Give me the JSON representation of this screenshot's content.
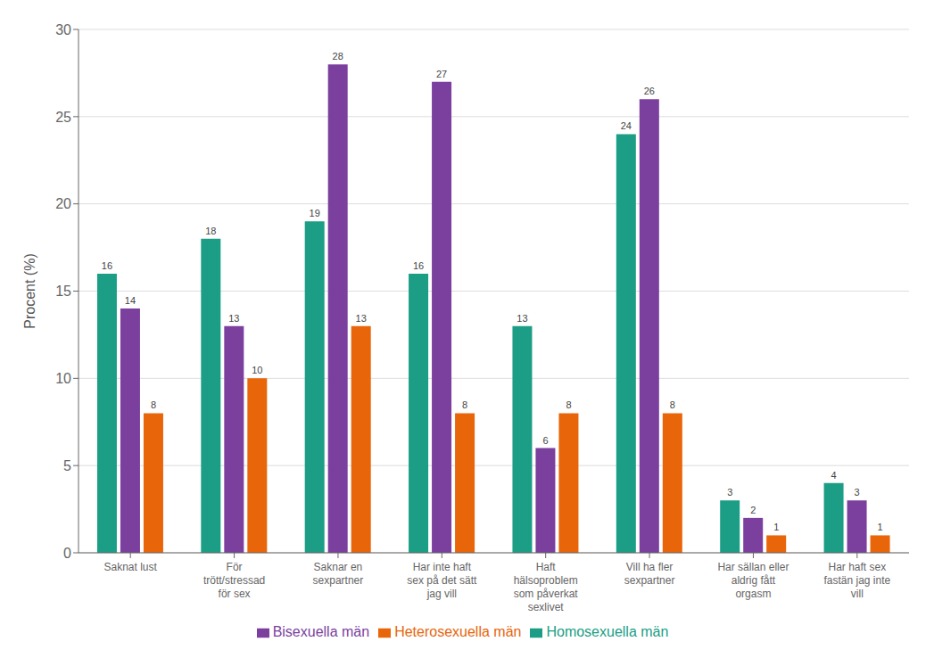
{
  "chart_data": {
    "type": "bar",
    "categories": [
      "Saknat lust",
      "För\ntrött/stressad\nför sex",
      "Saknar en\nsexpartner",
      "Har inte haft\nsex på det sätt\njag vill",
      "Haft\nhälsoproblem\nsom påverkat\nsexlivet",
      "Vill ha fler\nsexpartner",
      "Har sällan eller\naldrig fått\norgasm",
      "Har haft sex\nfastän jag inte\nvill"
    ],
    "series": [
      {
        "name": "Homosexuella män",
        "color": "#1B9E85",
        "values": [
          16,
          18,
          19,
          16,
          13,
          24,
          3,
          4
        ]
      },
      {
        "name": "Bisexuella män",
        "color": "#7B3F9E",
        "values": [
          14,
          13,
          28,
          27,
          6,
          26,
          2,
          3
        ]
      },
      {
        "name": "Heterosexuella män",
        "color": "#E8650A",
        "values": [
          8,
          10,
          13,
          8,
          8,
          8,
          1,
          1
        ]
      }
    ],
    "ylabel": "Procent (%)",
    "ylim": [
      0,
      30
    ],
    "yticks": [
      0,
      5,
      10,
      15,
      20,
      25,
      30
    ],
    "grid": true,
    "data_labels": true,
    "legend": "bottom"
  }
}
